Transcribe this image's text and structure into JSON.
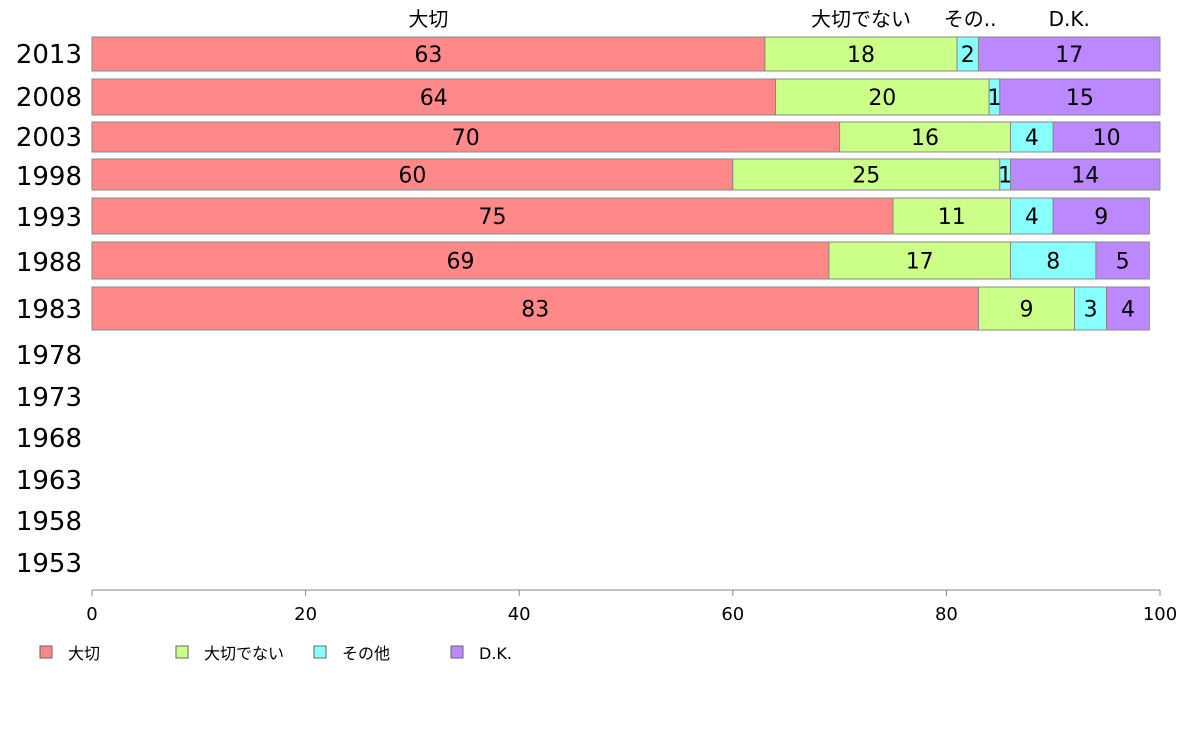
{
  "chart_data": {
    "type": "bar",
    "orientation": "horizontal",
    "stacked": true,
    "categories": [
      "2013",
      "2008",
      "2003",
      "1998",
      "1993",
      "1988",
      "1983",
      "1978",
      "1973",
      "1968",
      "1963",
      "1958",
      "1953"
    ],
    "series": [
      {
        "name": "大切",
        "color": "#ff8888",
        "values": [
          63,
          64,
          70,
          60,
          75,
          69,
          83,
          null,
          null,
          null,
          null,
          null,
          null
        ]
      },
      {
        "name": "大切でない",
        "color": "#ccff88",
        "values": [
          18,
          20,
          16,
          25,
          11,
          17,
          9,
          null,
          null,
          null,
          null,
          null,
          null
        ]
      },
      {
        "name": "その他",
        "color": "#88ffff",
        "values": [
          2,
          1,
          4,
          1,
          4,
          8,
          3,
          null,
          null,
          null,
          null,
          null,
          null
        ]
      },
      {
        "name": "D.K.",
        "color": "#bb88ff",
        "values": [
          17,
          15,
          10,
          14,
          9,
          5,
          4,
          null,
          null,
          null,
          null,
          null,
          null
        ]
      }
    ],
    "column_headers": [
      "大切",
      "大切でない",
      "その..",
      "D.K."
    ],
    "x_ticks": [
      "0",
      "20",
      "40",
      "60",
      "80",
      "100"
    ],
    "xlim": [
      0,
      100
    ],
    "legend_position": "bottom-left",
    "grid": false
  }
}
